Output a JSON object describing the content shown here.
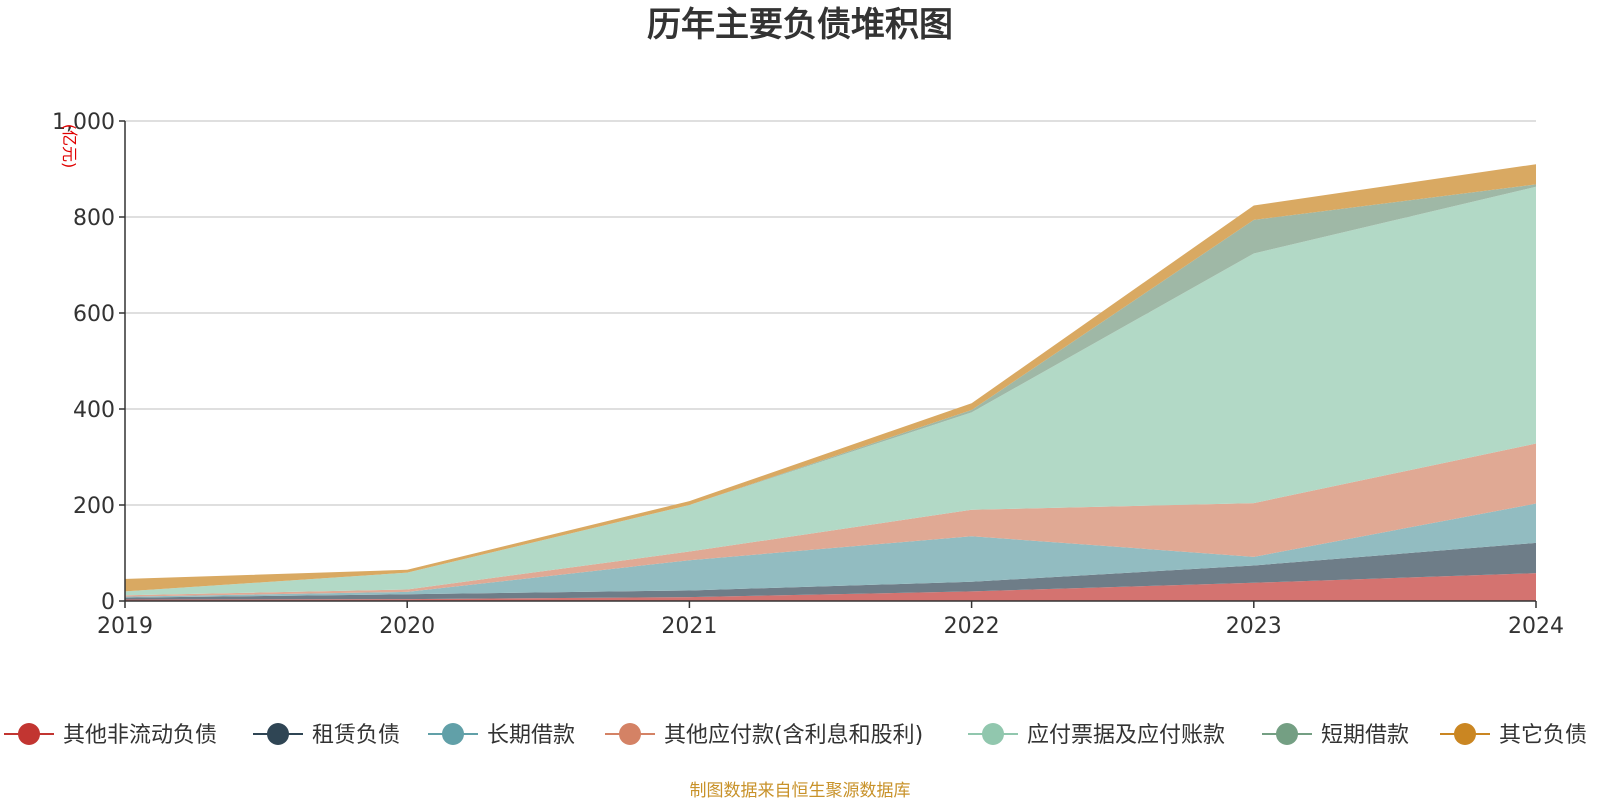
{
  "chart_data": {
    "type": "area",
    "stacked": true,
    "title": "历年主要负债堆积图",
    "unit_label": "(亿元)",
    "footer": "制图数据来自恒生聚源数据库",
    "x": [
      "2019",
      "2020",
      "2021",
      "2022",
      "2023",
      "2024"
    ],
    "ylim": [
      0,
      1000
    ],
    "yticks": [
      0,
      200,
      400,
      600,
      800,
      1000
    ],
    "ytick_labels": [
      "0",
      "200",
      "400",
      "600",
      "800",
      "1,000"
    ],
    "grid": true,
    "legend_position": "bottom",
    "series": [
      {
        "name": "其他非流动负债",
        "color": "#c23531",
        "fill": "#d47370",
        "values": [
          3,
          4,
          8,
          20,
          38,
          58
        ]
      },
      {
        "name": "租赁负债",
        "color": "#2f4554",
        "fill": "#6e7d88",
        "values": [
          4,
          10,
          14,
          20,
          36,
          63
        ]
      },
      {
        "name": "长期借款",
        "color": "#61a0a8",
        "fill": "#92bcc1",
        "values": [
          2,
          5,
          63,
          95,
          18,
          82
        ]
      },
      {
        "name": "其他应付款(含利息和股利)",
        "color": "#d48265",
        "fill": "#e0a994",
        "values": [
          3,
          5,
          18,
          55,
          112,
          125
        ]
      },
      {
        "name": "应付票据及应付账款",
        "color": "#91c7ae",
        "fill": "#b2d9c6",
        "values": [
          8,
          35,
          97,
          203,
          520,
          535
        ]
      },
      {
        "name": "短期借款",
        "color": "#749f83",
        "fill": "#9fb8a6",
        "values": [
          0,
          0,
          0,
          5,
          70,
          5
        ]
      },
      {
        "name": "其它负债",
        "color": "#ca8622",
        "fill": "#d9a962",
        "values": [
          26,
          6,
          8,
          14,
          30,
          42
        ]
      }
    ]
  }
}
